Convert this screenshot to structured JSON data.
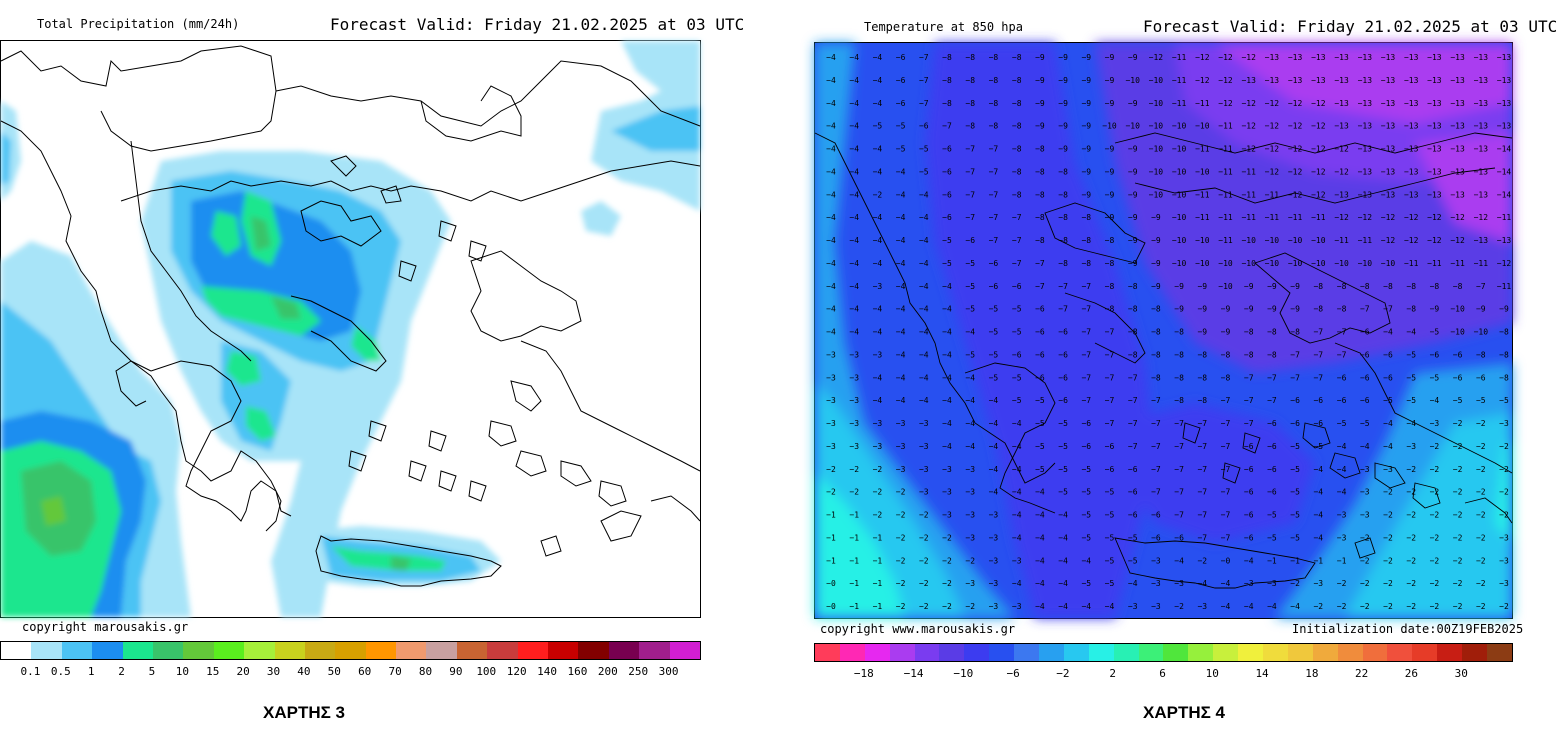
{
  "left_map": {
    "title": "Total Precipitation (mm/24h)",
    "forecast_valid": "Forecast Valid:  Friday 21.02.2025 at 03 UTC",
    "copyright": "copyright marousakis.gr",
    "colorbar_labels": [
      "0.1",
      "0.5",
      "1",
      "2",
      "5",
      "10",
      "15",
      "20",
      "30",
      "40",
      "50",
      "60",
      "70",
      "80",
      "90",
      "100",
      "120",
      "140",
      "160",
      "200",
      "250",
      "300"
    ],
    "colorbar_colors": [
      "#ffffff",
      "#a8e4f8",
      "#4cc3f4",
      "#1c8ef0",
      "#1be68e",
      "#39c46a",
      "#63c83a",
      "#5aef1e",
      "#a6f03a",
      "#c8d21e",
      "#c8aa14",
      "#d7a000",
      "#ff9600",
      "#f09a6e",
      "#c8a0a0",
      "#c86432",
      "#c83c3c",
      "#ff1e1e",
      "#c80000",
      "#820000",
      "#780050",
      "#a01e8c",
      "#d21ed2"
    ],
    "label": "ΧΑΡΤΗΣ 3"
  },
  "right_map": {
    "title": "Temperature at 850 hpa",
    "forecast_valid": "Forecast Valid:  Friday 21.02.2025 at 03 UTC",
    "copyright": "copyright www.marousakis.gr",
    "init": "Initialization date:00Z19FEB2025",
    "colorbar_labels": [
      "−18",
      "−14",
      "−10",
      "−6",
      "−2",
      "2",
      "6",
      "10",
      "14",
      "18",
      "22",
      "26",
      "30"
    ],
    "colorbar_colors": [
      "#ff3c5a",
      "#ff28b4",
      "#e628f0",
      "#aa3cf0",
      "#7a3cf0",
      "#5a3ce6",
      "#3c3cf0",
      "#2850f0",
      "#3c78f0",
      "#28a0f0",
      "#28c8f0",
      "#28f0e6",
      "#28f0b4",
      "#3cf078",
      "#50e63c",
      "#96f03c",
      "#c8f03c",
      "#f0f03c",
      "#f0dc3c",
      "#f0c83c",
      "#f0aa3c",
      "#f08c3c",
      "#f06e3c",
      "#f0503c",
      "#e63c28",
      "#c81e14",
      "#a01e0a",
      "#8c3c14"
    ],
    "label": "ΧΑΡΤΗΣ 4"
  },
  "temperature_grid": {
    "values": [
      [
        -4,
        -4,
        -4,
        -6,
        -7,
        -8,
        -8,
        -8,
        -8,
        -9,
        -9,
        -9,
        -9,
        -9,
        -12,
        -11,
        -12,
        -12,
        -12,
        -13,
        -13,
        -13,
        -13,
        -13,
        -13,
        -13,
        -13,
        -13,
        -13,
        -13
      ],
      [
        -4,
        -4,
        -4,
        -6,
        -7,
        -8,
        -8,
        -8,
        -8,
        -9,
        -9,
        -9,
        -9,
        -10,
        -10,
        -11,
        -12,
        -12,
        -13,
        -13,
        -13,
        -13,
        -13,
        -13,
        -13,
        -13,
        -13,
        -13,
        -13,
        -13
      ],
      [
        -4,
        -4,
        -4,
        -6,
        -7,
        -8,
        -8,
        -8,
        -8,
        -9,
        -9,
        -9,
        -9,
        -9,
        -10,
        -11,
        -11,
        -12,
        -12,
        -12,
        -12,
        -12,
        -13,
        -13,
        -13,
        -13,
        -13,
        -13,
        -13,
        -13
      ],
      [
        -4,
        -4,
        -5,
        -5,
        -6,
        -7,
        -8,
        -8,
        -8,
        -9,
        -9,
        -9,
        -10,
        -10,
        -10,
        -10,
        -10,
        -11,
        -12,
        -12,
        -12,
        -12,
        -13,
        -13,
        -13,
        -13,
        -13,
        -13,
        -13,
        -13
      ],
      [
        -4,
        -4,
        -4,
        -5,
        -5,
        -6,
        -7,
        -7,
        -8,
        -8,
        -9,
        -9,
        -9,
        -9,
        -10,
        -10,
        -11,
        -11,
        -12,
        -12,
        -12,
        -12,
        -12,
        -13,
        -13,
        -13,
        -13,
        -13,
        -13,
        -14
      ],
      [
        -4,
        -4,
        -4,
        -4,
        -5,
        -6,
        -7,
        -7,
        -8,
        -8,
        -8,
        -9,
        -9,
        -9,
        -10,
        -10,
        -10,
        -11,
        -11,
        -12,
        -12,
        -12,
        -12,
        -13,
        -13,
        -13,
        -13,
        -13,
        -13,
        -14
      ],
      [
        -4,
        -4,
        -2,
        -4,
        -4,
        -6,
        -7,
        -7,
        -8,
        -8,
        -8,
        -9,
        -9,
        -9,
        -10,
        -10,
        -11,
        -11,
        -11,
        -11,
        -12,
        -12,
        -13,
        -13,
        -13,
        -13,
        -13,
        -13,
        -13,
        -14
      ],
      [
        -4,
        -4,
        -4,
        -4,
        -4,
        -6,
        -7,
        -7,
        -7,
        -8,
        -8,
        -8,
        -9,
        -9,
        -9,
        -10,
        -11,
        -11,
        -11,
        -11,
        -11,
        -11,
        -12,
        -12,
        -12,
        -12,
        -12,
        -12,
        -12,
        -11
      ],
      [
        -4,
        -4,
        -4,
        -4,
        -4,
        -5,
        -6,
        -7,
        -7,
        -8,
        -8,
        -8,
        -8,
        -9,
        -9,
        -10,
        -10,
        -11,
        -10,
        -10,
        -10,
        -10,
        -11,
        -11,
        -12,
        -12,
        -12,
        -12,
        -13,
        -13
      ],
      [
        -4,
        -4,
        -4,
        -4,
        -4,
        -5,
        -5,
        -6,
        -7,
        -7,
        -8,
        -8,
        -8,
        -9,
        -9,
        -10,
        -10,
        -10,
        -10,
        -10,
        -10,
        -10,
        -10,
        -10,
        -10,
        -11,
        -11,
        -11,
        -11,
        -12
      ],
      [
        -4,
        -4,
        -3,
        -4,
        -4,
        -4,
        -5,
        -6,
        -6,
        -7,
        -7,
        -7,
        -8,
        -8,
        -9,
        -9,
        -9,
        -10,
        -9,
        -9,
        -9,
        -8,
        -8,
        -8,
        -8,
        -8,
        -8,
        -8,
        -7,
        -11
      ],
      [
        -4,
        -4,
        -4,
        -4,
        -4,
        -4,
        -5,
        -5,
        -5,
        -6,
        -7,
        -7,
        -8,
        -8,
        -8,
        -9,
        -9,
        -9,
        -9,
        -9,
        -9,
        -8,
        -8,
        -7,
        -7,
        -8,
        -9,
        -10,
        -9,
        -9
      ],
      [
        -4,
        -4,
        -4,
        -4,
        -4,
        -4,
        -4,
        -5,
        -5,
        -6,
        -6,
        -7,
        -7,
        -8,
        -8,
        -8,
        -9,
        -9,
        -8,
        -8,
        -8,
        -7,
        -7,
        -6,
        -4,
        -4,
        -5,
        -10,
        -10,
        -8
      ],
      [
        -3,
        -3,
        -3,
        -4,
        -4,
        -4,
        -5,
        -5,
        -6,
        -6,
        -6,
        -7,
        -7,
        -8,
        -8,
        -8,
        -8,
        -8,
        -8,
        -8,
        -7,
        -7,
        -7,
        -6,
        -6,
        -5,
        -6,
        -6,
        -8,
        -8
      ],
      [
        -3,
        -3,
        -4,
        -4,
        -4,
        -4,
        -4,
        -5,
        -5,
        -6,
        -6,
        -7,
        -7,
        -7,
        -8,
        -8,
        -8,
        -8,
        -7,
        -7,
        -7,
        -7,
        -6,
        -6,
        -6,
        -5,
        -5,
        -6,
        -6,
        -8
      ],
      [
        -3,
        -3,
        -4,
        -4,
        -4,
        -4,
        -4,
        -4,
        -5,
        -5,
        -6,
        -7,
        -7,
        -7,
        -7,
        -8,
        -8,
        -7,
        -7,
        -7,
        -6,
        -6,
        -6,
        -6,
        -5,
        -5,
        -4,
        -5,
        -5,
        -5
      ],
      [
        -3,
        -3,
        -3,
        -3,
        -3,
        -4,
        -4,
        -4,
        -4,
        -5,
        -5,
        -6,
        -7,
        -7,
        -7,
        -7,
        -7,
        -7,
        -7,
        -6,
        -6,
        -6,
        -5,
        -5,
        -4,
        -4,
        -3,
        -2,
        -2,
        -3
      ],
      [
        -3,
        -3,
        -3,
        -3,
        -3,
        -4,
        -4,
        -4,
        -4,
        -5,
        -5,
        -6,
        -6,
        -7,
        -7,
        -7,
        -7,
        -7,
        -6,
        -6,
        -5,
        -5,
        -4,
        -4,
        -4,
        -3,
        -2,
        -2,
        -2,
        -2
      ],
      [
        -2,
        -2,
        -2,
        -3,
        -3,
        -3,
        -3,
        -4,
        -4,
        -5,
        -5,
        -5,
        -6,
        -6,
        -7,
        -7,
        -7,
        -7,
        -6,
        -6,
        -5,
        -4,
        -4,
        -3,
        -3,
        -2,
        -2,
        -2,
        -2,
        -2
      ],
      [
        -2,
        -2,
        -2,
        -2,
        -3,
        -3,
        -3,
        -4,
        -4,
        -4,
        -5,
        -5,
        -5,
        -6,
        -7,
        -7,
        -7,
        -7,
        -6,
        -6,
        -5,
        -4,
        -4,
        -3,
        -2,
        -2,
        -2,
        -2,
        -2,
        -2
      ],
      [
        -1,
        -1,
        -2,
        -2,
        -2,
        -3,
        -3,
        -3,
        -4,
        -4,
        -4,
        -5,
        -5,
        -6,
        -6,
        -7,
        -7,
        -7,
        -6,
        -5,
        -5,
        -4,
        -3,
        -3,
        -2,
        -2,
        -2,
        -2,
        -2,
        -2
      ],
      [
        -1,
        -1,
        -1,
        -2,
        -2,
        -2,
        -3,
        -3,
        -4,
        -4,
        -4,
        -5,
        -5,
        -5,
        -6,
        -6,
        -7,
        -7,
        -6,
        -5,
        -5,
        -4,
        -3,
        -2,
        -2,
        -2,
        -2,
        -2,
        -2,
        -3
      ],
      [
        -1,
        -1,
        -1,
        -2,
        -2,
        -2,
        -2,
        -3,
        -3,
        -4,
        -4,
        -4,
        -5,
        -5,
        -3,
        -4,
        -2,
        0,
        -4,
        -1,
        -1,
        -1,
        -1,
        -2,
        -2,
        -2,
        -2,
        -2,
        -2,
        -3
      ],
      [
        0,
        -1,
        -1,
        -2,
        -2,
        -2,
        -3,
        -3,
        -4,
        -4,
        -4,
        -5,
        -5,
        -4,
        -3,
        -3,
        -4,
        -4,
        -3,
        -3,
        -2,
        -3,
        -2,
        -2,
        -2,
        -2,
        -2,
        -2,
        -2,
        -3
      ],
      [
        0,
        -1,
        -1,
        -2,
        -2,
        -2,
        -2,
        -3,
        -3,
        -4,
        -4,
        -4,
        -4,
        -3,
        -3,
        -2,
        -3,
        -4,
        -4,
        -4,
        -4,
        -2,
        -2,
        -2,
        -2,
        -2,
        -2,
        -2,
        -2,
        -2
      ]
    ]
  }
}
